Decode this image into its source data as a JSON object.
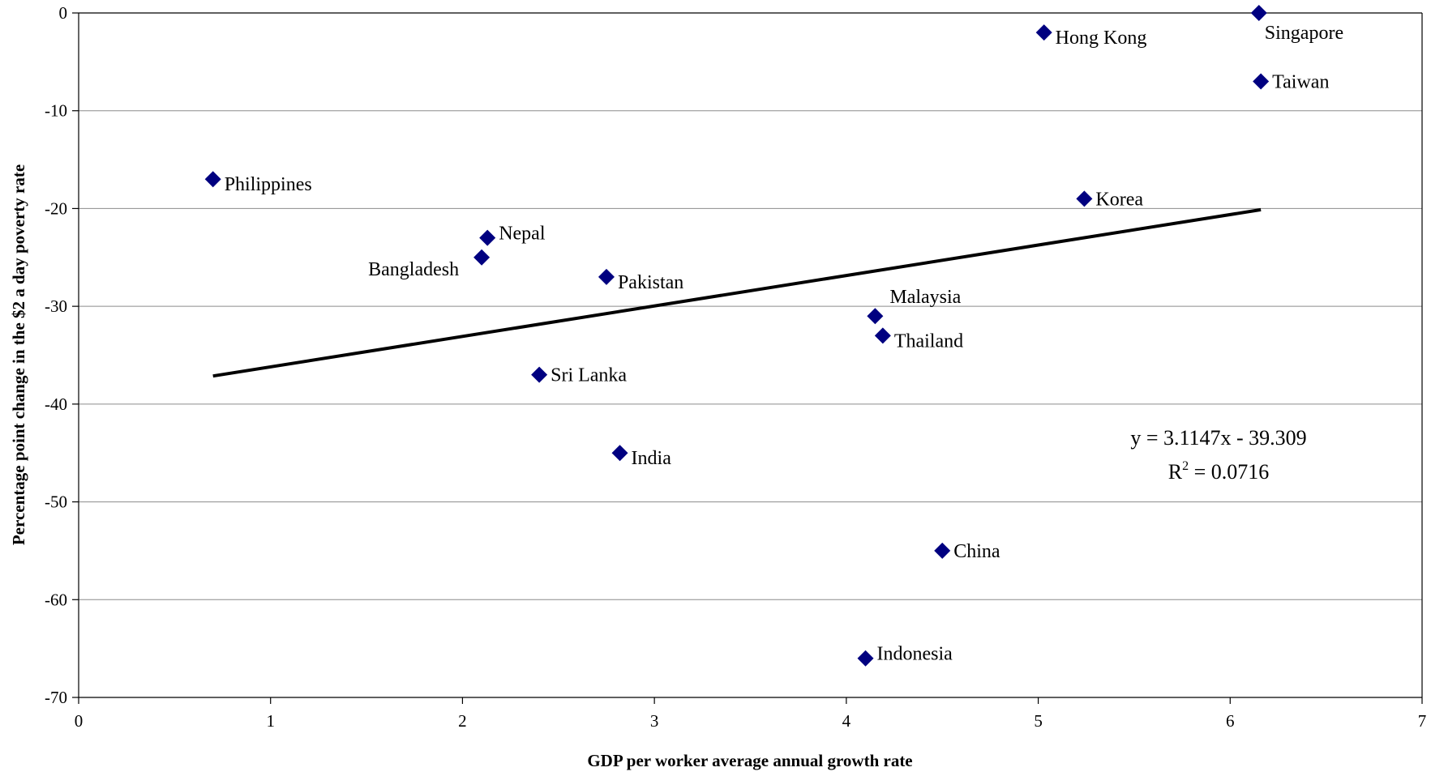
{
  "chart_data": {
    "type": "scatter",
    "xlabel": "GDP per worker average annual growth rate",
    "ylabel": "Percentage point change in the $2 a day poverty rate",
    "xlim": [
      0,
      7
    ],
    "ylim": [
      -70,
      0
    ],
    "x_ticks": [
      "0",
      "1",
      "2",
      "3",
      "4",
      "5",
      "6",
      "7"
    ],
    "y_ticks": [
      "0",
      "-10",
      "-20",
      "-30",
      "-40",
      "-50",
      "-60",
      "-70"
    ],
    "x_tick_values": [
      0,
      1,
      2,
      3,
      4,
      5,
      6,
      7
    ],
    "y_tick_values": [
      0,
      -10,
      -20,
      -30,
      -40,
      -50,
      -60,
      -70
    ],
    "grid": {
      "horizontal": true,
      "vertical": false
    },
    "marker": {
      "shape": "diamond",
      "color": "#000080"
    },
    "points": [
      {
        "label": "Philippines",
        "x": 0.7,
        "y": -17
      },
      {
        "label": "Nepal",
        "x": 2.13,
        "y": -23
      },
      {
        "label": "Bangladesh",
        "x": 2.1,
        "y": -25
      },
      {
        "label": "Pakistan",
        "x": 2.75,
        "y": -27
      },
      {
        "label": "Sri Lanka",
        "x": 2.4,
        "y": -37
      },
      {
        "label": "India",
        "x": 2.82,
        "y": -45
      },
      {
        "label": "Malaysia",
        "x": 4.15,
        "y": -31
      },
      {
        "label": "Thailand",
        "x": 4.19,
        "y": -33
      },
      {
        "label": "China",
        "x": 4.5,
        "y": -55
      },
      {
        "label": "Indonesia",
        "x": 4.1,
        "y": -66
      },
      {
        "label": "Hong Kong",
        "x": 5.03,
        "y": -2
      },
      {
        "label": "Korea",
        "x": 5.24,
        "y": -19
      },
      {
        "label": "Singapore",
        "x": 6.15,
        "y": 0
      },
      {
        "label": "Taiwan",
        "x": 6.16,
        "y": -7
      }
    ],
    "trendline": {
      "type": "linear",
      "slope": 3.1147,
      "intercept": -39.309,
      "x_range": [
        0.7,
        6.16
      ],
      "color": "#000000",
      "equation_text": "y = 3.1147x - 39.309",
      "r2_label": "R",
      "r2_superscript": "2",
      "r2_value": " = 0.0716"
    }
  }
}
